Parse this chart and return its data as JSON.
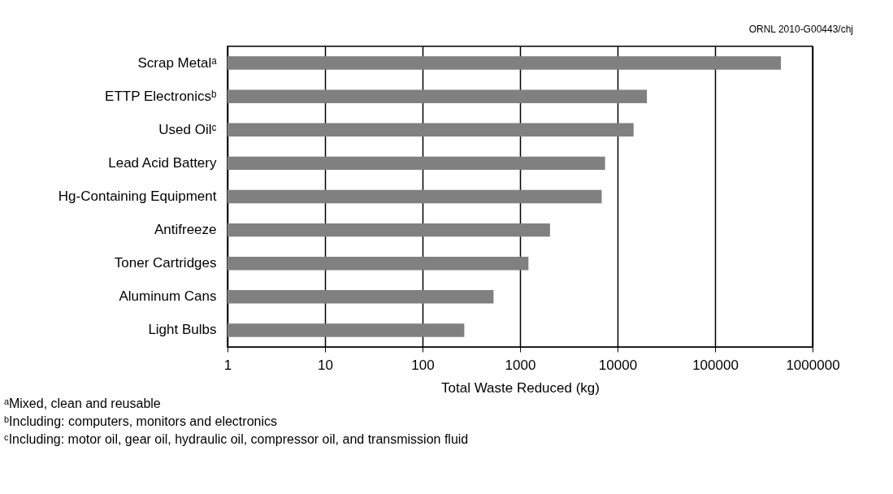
{
  "chart_data": {
    "type": "bar",
    "orientation": "horizontal",
    "log": "x",
    "categories": [
      "Scrap Metalᵃ",
      "ETTP Electronicsᵇ",
      "Used Oilᶜ",
      "Lead Acid Battery",
      "Hg-Containing Equipment",
      "Antifreeze",
      "Toner Cartridges",
      "Aluminum Cans",
      "Light Bulbs"
    ],
    "values": [
      474000,
      20000,
      14600,
      7450,
      6880,
      2030,
      1220,
      535,
      268
    ],
    "color": "#808080",
    "xlim": [
      1,
      1000000
    ],
    "xticks": [
      1,
      10,
      100,
      1000,
      10000,
      100000,
      1000000
    ],
    "xlabel": "Total Waste Reduced (kg)",
    "grid": "x",
    "annotations": [
      "ORNL 2010-G00443/chj",
      "ᵃMixed, clean and reusable",
      "ᵇIncluding: computers, monitors and electronics",
      "ᶜIncluding: motor oil, gear oil, hydraulic oil, compressor oil, and transmission fluid"
    ]
  }
}
